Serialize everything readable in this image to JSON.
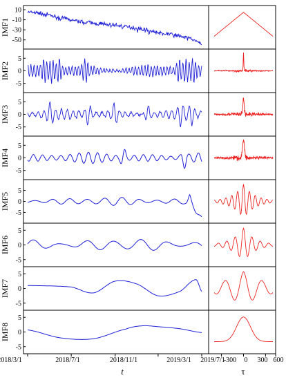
{
  "chart_data": {
    "type": "line",
    "x_axis": {
      "label": "t",
      "ticks": [
        "2018/3/1",
        "2018/7/1",
        "2018/11/1",
        "2019/3/1",
        "2019/7/1"
      ],
      "range": [
        "2018/3/1",
        "2019/7/1"
      ]
    },
    "tau_axis": {
      "label": "τ",
      "ticks": [
        -300,
        0,
        300,
        600
      ],
      "range": [
        -400,
        400
      ]
    },
    "colors": {
      "signal": "#1f1fd6",
      "autocorr": "#ee2222",
      "frame": "#000000"
    },
    "panels": [
      {
        "name": "IMF1",
        "ylim": [
          -60,
          10
        ],
        "yticks": [
          10,
          -10,
          -30,
          -50
        ],
        "kind": "trend_noisy",
        "series": [
          {
            "x": "2018/3/1",
            "y": 5
          },
          {
            "x": "2018/4/1",
            "y": 3
          },
          {
            "x": "2018/5/1",
            "y": -1
          },
          {
            "x": "2018/6/1",
            "y": -6
          },
          {
            "x": "2018/7/1",
            "y": -10
          },
          {
            "x": "2018/8/1",
            "y": -14
          },
          {
            "x": "2018/9/1",
            "y": -17
          },
          {
            "x": "2018/10/1",
            "y": -19
          },
          {
            "x": "2018/11/1",
            "y": -21
          },
          {
            "x": "2018/12/1",
            "y": -24
          },
          {
            "x": "2019/1/1",
            "y": -27
          },
          {
            "x": "2019/2/1",
            "y": -31
          },
          {
            "x": "2019/3/1",
            "y": -36
          },
          {
            "x": "2019/4/1",
            "y": -39
          },
          {
            "x": "2019/5/1",
            "y": -42
          },
          {
            "x": "2019/6/1",
            "y": -48
          },
          {
            "x": "2019/7/1",
            "y": -58
          }
        ],
        "acf_shape": "triangle"
      },
      {
        "name": "IMF2",
        "ylim": [
          -7,
          7
        ],
        "yticks": [
          5,
          0,
          -5
        ],
        "kind": "osc",
        "freq": 55,
        "amp": 2.2,
        "spikes": [
          0.1,
          0.14,
          0.18,
          0.33,
          0.87,
          0.91,
          0.95
        ],
        "acf_shape": "spike"
      },
      {
        "name": "IMF3",
        "ylim": [
          -7,
          7
        ],
        "yticks": [
          5,
          0,
          -5
        ],
        "kind": "osc",
        "freq": 30,
        "amp": 1.7,
        "spikes": [
          0.13,
          0.35,
          0.5,
          0.69,
          0.88,
          0.94
        ],
        "acf_shape": "spike_wide"
      },
      {
        "name": "IMF4",
        "ylim": [
          -7,
          7
        ],
        "yticks": [
          5,
          0,
          -5
        ],
        "kind": "osc",
        "freq": 19,
        "amp": 1.9,
        "spikes": [
          0.55,
          0.9
        ],
        "acf_shape": "spike_wider"
      },
      {
        "name": "IMF5",
        "ylim": [
          -8,
          8
        ],
        "yticks": [
          5,
          0,
          -5
        ],
        "kind": "osc",
        "freq": 10,
        "amp": 1.6,
        "spikes": [
          0.93
        ],
        "end_drop": -7,
        "acf_shape": "damped",
        "acf_freq": 10
      },
      {
        "name": "IMF6",
        "ylim": [
          -6,
          6
        ],
        "yticks": [
          5,
          0,
          -5
        ],
        "kind": "osc",
        "freq": 6.5,
        "amp": 1.8,
        "spikes": [],
        "acf_shape": "damped",
        "acf_freq": 7
      },
      {
        "name": "IMF7",
        "ylim": [
          -6,
          6
        ],
        "yticks": [
          5,
          0,
          -5
        ],
        "kind": "slow",
        "points": [
          {
            "x": "2018/3/1",
            "y": 1
          },
          {
            "x": "2018/7/1",
            "y": 0.5
          },
          {
            "x": "2018/9/1",
            "y": -1.5
          },
          {
            "x": "2018/11/1",
            "y": 2.5
          },
          {
            "x": "2019/1/1",
            "y": 1.5
          },
          {
            "x": "2019/3/1",
            "y": -2.5
          },
          {
            "x": "2019/5/1",
            "y": -1
          },
          {
            "x": "2019/6/15",
            "y": 3
          },
          {
            "x": "2019/7/1",
            "y": -1
          }
        ],
        "acf_shape": "damped_slow",
        "acf_freq": 3.2
      },
      {
        "name": "IMF8",
        "ylim": [
          -6,
          6
        ],
        "yticks": [
          5,
          0,
          -5
        ],
        "kind": "slow",
        "points": [
          {
            "x": "2018/3/1",
            "y": 0.7
          },
          {
            "x": "2018/6/1",
            "y": -2
          },
          {
            "x": "2018/9/1",
            "y": -2.3
          },
          {
            "x": "2018/12/1",
            "y": 1
          },
          {
            "x": "2019/1/15",
            "y": 2.1
          },
          {
            "x": "2019/3/1",
            "y": 1.8
          },
          {
            "x": "2019/5/1",
            "y": 1.1
          },
          {
            "x": "2019/7/1",
            "y": -0.2
          }
        ],
        "acf_shape": "bell"
      }
    ]
  }
}
